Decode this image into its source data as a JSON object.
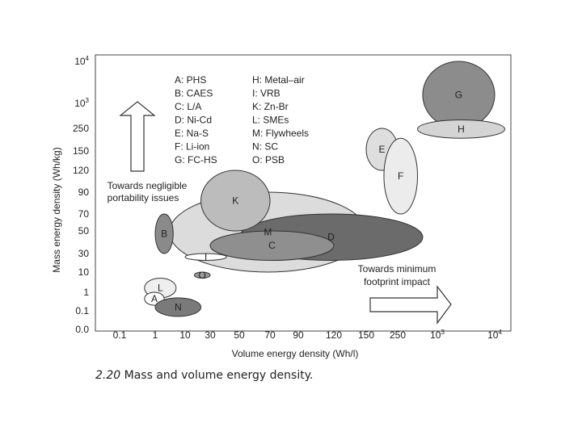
{
  "caption": {
    "number": "2.20",
    "text": "Mass and volume energy density."
  },
  "chart_data": {
    "type": "scatter",
    "xlabel": "Volume energy density (Wh/l)",
    "ylabel": "Mass energy density (Wh/kg)",
    "x_ticks": [
      "0.1",
      "1",
      "10",
      "30",
      "50",
      "70",
      "90",
      "120",
      "150",
      "250",
      "10^3",
      "10^4"
    ],
    "y_ticks": [
      "0.0",
      "0.1",
      "1",
      "10",
      "30",
      "50",
      "70",
      "90",
      "120",
      "150",
      "250",
      "10^3",
      "10^4"
    ],
    "legend": [
      "A: PHS",
      "B: CAES",
      "C: L/A",
      "D: Ni-Cd",
      "E: Na-S",
      "F: Li-ion",
      "G: FC-HS",
      "H: Metal–air",
      "I: VRB",
      "K: Zn-Br",
      "L: SMEs",
      "M: Flywheels",
      "N: SC",
      "O: PSB"
    ],
    "annotations": {
      "up_arrow": [
        "Towards negligible",
        "portability issues"
      ],
      "right_arrow": [
        "Towards minimum",
        "footprint impact"
      ]
    },
    "series": [
      {
        "label": "M",
        "x": [
          3,
          150
        ],
        "y": [
          10,
          90
        ],
        "color": "#dcdcdc"
      },
      {
        "label": "D",
        "x": [
          50,
          600
        ],
        "y": [
          20,
          70
        ],
        "color": "#6b6b6b"
      },
      {
        "label": "C",
        "x": [
          30,
          120
        ],
        "y": [
          20,
          50
        ],
        "color": "#8f8f8f"
      },
      {
        "label": "K",
        "x": [
          20,
          70
        ],
        "y": [
          50,
          120
        ],
        "color": "#bcbcbc"
      },
      {
        "label": "B",
        "x": [
          1,
          4
        ],
        "y": [
          30,
          70
        ],
        "color": "#8a8a8a"
      },
      {
        "label": "I",
        "x": [
          10,
          40
        ],
        "y": [
          20,
          30
        ],
        "color": "#ffffff"
      },
      {
        "label": "O",
        "x": [
          15,
          30
        ],
        "y": [
          5,
          10
        ],
        "color": "#9a9a9a"
      },
      {
        "label": "L",
        "x": [
          0.5,
          5
        ],
        "y": [
          0.5,
          5
        ],
        "color": "#efefef"
      },
      {
        "label": "A",
        "x": [
          0.5,
          2
        ],
        "y": [
          0.2,
          1
        ],
        "color": "#ffffff"
      },
      {
        "label": "N",
        "x": [
          1,
          20
        ],
        "y": [
          0.05,
          0.5
        ],
        "color": "#7a7a7a"
      },
      {
        "label": "E",
        "x": [
          150,
          250
        ],
        "y": [
          120,
          250
        ],
        "color": "#dedede"
      },
      {
        "label": "F",
        "x": [
          200,
          500
        ],
        "y": [
          70,
          200
        ],
        "color": "#ececec"
      },
      {
        "label": "G",
        "x": [
          600,
          10000
        ],
        "y": [
          250,
          10000
        ],
        "color": "#8c8c8c"
      },
      {
        "label": "H",
        "x": [
          500,
          15000
        ],
        "y": [
          200,
          400
        ],
        "color": "#d4d4d4"
      }
    ],
    "grid": false,
    "legend_position": "top-left"
  }
}
